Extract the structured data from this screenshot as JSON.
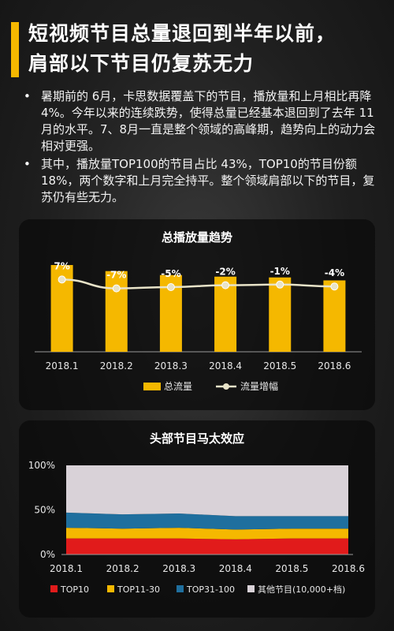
{
  "header": {
    "title_line1": "短视频节目总量退回到半年以前，",
    "title_line2": "肩部以下节目仍复苏无力"
  },
  "bullets": [
    "暑期前的 6月，卡思数据覆盖下的节目，播放量和上月相比再降 4%。今年以来的连续跌势，使得总量已经基本退回到了去年 11月的水平。7、8月一直是整个领域的高峰期，趋势向上的动力会相对更强。",
    "其中，播放量TOP100的节目占比 43%，TOP10的节目份额 18%，两个数字和上月完全持平。整个领域肩部以下的节目，复苏仍有些无力。"
  ],
  "colors": {
    "accent": "#f5b800",
    "line": "#e8e3c8",
    "top10": "#e11b1b",
    "top11_30": "#f5b800",
    "top31_100": "#1f6f9e",
    "others": "#d9d2d8"
  },
  "chart_data": [
    {
      "type": "bar",
      "title": "总播放量趋势",
      "categories": [
        "2018.1",
        "2018.2",
        "2018.3",
        "2018.4",
        "2018.5",
        "2018.6"
      ],
      "series": [
        {
          "name": "总流量",
          "type": "bar",
          "values": [
            100,
            93,
            88.4,
            86.6,
            85.7,
            82.3
          ]
        },
        {
          "name": "流量增幅",
          "type": "line",
          "values": [
            7,
            -7,
            -5,
            -2,
            -1,
            -4
          ],
          "labels": [
            "7%",
            "-7%",
            "-5%",
            "-2%",
            "-1%",
            "-4%"
          ]
        }
      ],
      "legend": "bottom"
    },
    {
      "type": "area",
      "title": "头部节目马太效应",
      "categories": [
        "2018.1",
        "2018.2",
        "2018.3",
        "2018.4",
        "2018.5",
        "2018.6"
      ],
      "yticks": [
        "0%",
        "50%",
        "100%"
      ],
      "ylim": [
        0,
        100
      ],
      "stacked": true,
      "series": [
        {
          "name": "TOP10",
          "values": [
            18,
            18,
            18,
            17,
            18,
            18
          ]
        },
        {
          "name": "TOP11-30",
          "values": [
            12,
            11,
            12,
            11,
            11,
            11
          ]
        },
        {
          "name": "TOP31-100",
          "values": [
            17,
            16,
            16,
            15,
            14,
            14
          ]
        },
        {
          "name": "其他节目(10,000+档)",
          "values": [
            53,
            55,
            54,
            57,
            57,
            57
          ]
        }
      ],
      "legend": "bottom"
    }
  ]
}
